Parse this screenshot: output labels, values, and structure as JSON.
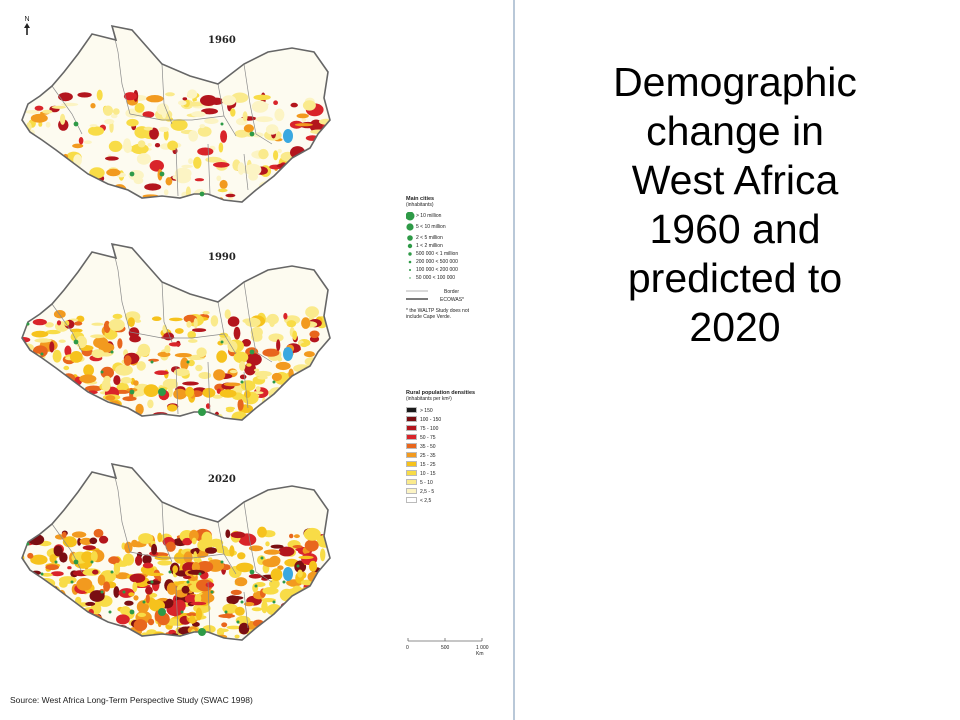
{
  "slide_title": [
    "Demographic",
    "change in",
    "West Africa",
    "1960 and",
    "predicted to",
    "2020"
  ],
  "north_label": "N",
  "maps": [
    {
      "year": "1960"
    },
    {
      "year": "1990"
    },
    {
      "year": "2020"
    }
  ],
  "legend": {
    "cities_title": "Main cities",
    "cities_subtitle": "(inhabitants)",
    "cities": [
      {
        "label": "> 10 million"
      },
      {
        "label": "5 < 10 million"
      },
      {
        "label": "2 < 5 million"
      },
      {
        "label": "1 < 2 million"
      },
      {
        "label": "500 000 < 1 million"
      },
      {
        "label": "200 000 < 500 000"
      },
      {
        "label": "100 000 < 200 000"
      },
      {
        "label": "50 000 < 100 000"
      }
    ],
    "border_label": "Border",
    "ecowas_label": "ECOWAS*",
    "footnote_1": "* the WALTP Study does not",
    "footnote_2": "include Cape Verde.",
    "density_title": "Rural population densities",
    "density_subtitle": "(inhabitants per km²)",
    "densities": [
      {
        "label": "> 150",
        "color": "#1a1a1a"
      },
      {
        "label": "100 - 150",
        "color": "#7a0e12"
      },
      {
        "label": "75 - 100",
        "color": "#b3151d"
      },
      {
        "label": "50 - 75",
        "color": "#d9242a"
      },
      {
        "label": "35 - 50",
        "color": "#e8661d"
      },
      {
        "label": "25 - 35",
        "color": "#f29a1f"
      },
      {
        "label": "15 - 25",
        "color": "#f6c21c"
      },
      {
        "label": "10 - 15",
        "color": "#f8dc47"
      },
      {
        "label": "5 - 10",
        "color": "#faea8c"
      },
      {
        "label": "2,5 - 5",
        "color": "#fcf4c4"
      },
      {
        "label": "< 2,5",
        "color": "#ffffff"
      }
    ]
  },
  "scale_bar": {
    "labels": [
      "0",
      "500",
      "1 000 Km"
    ]
  },
  "source": "Source: West Africa Long-Term Perspective Study (SWAC 1998)",
  "colors": {
    "city": "#2e9a47",
    "border": "#8a8a8a",
    "ecowas": "#666666",
    "water": "#3aa8e0"
  }
}
